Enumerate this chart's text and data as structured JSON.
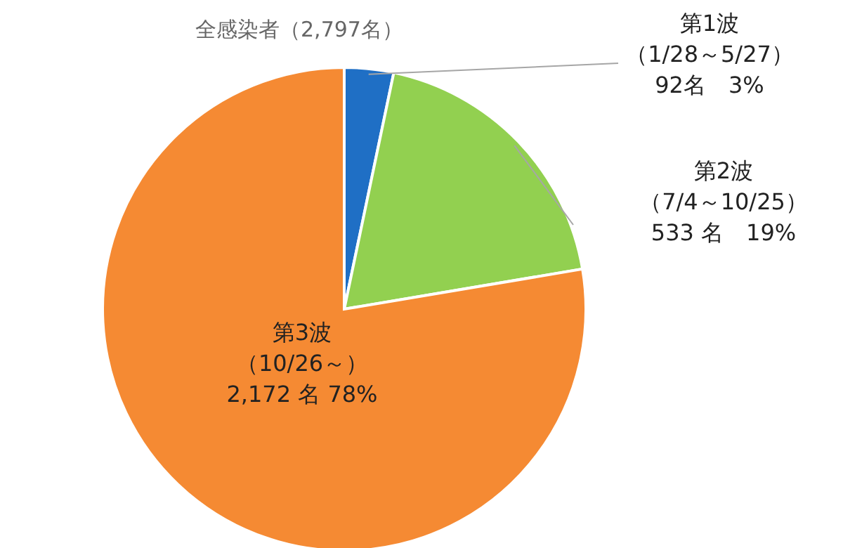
{
  "chart_data": {
    "type": "pie",
    "title": "全感染者（2,797名）",
    "categories": [
      "第1波",
      "第2波",
      "第3波"
    ],
    "values": [
      92,
      533,
      2172
    ],
    "colors": [
      "#1f6fc5",
      "#92d050",
      "#f58a33"
    ],
    "value_labels": [
      "（1/28～5/27）\n92名　3%",
      "（7/4～10/25）\n533 名　19%",
      "（10/26～）\n2,172 名 78%"
    ],
    "legend": false
  }
}
